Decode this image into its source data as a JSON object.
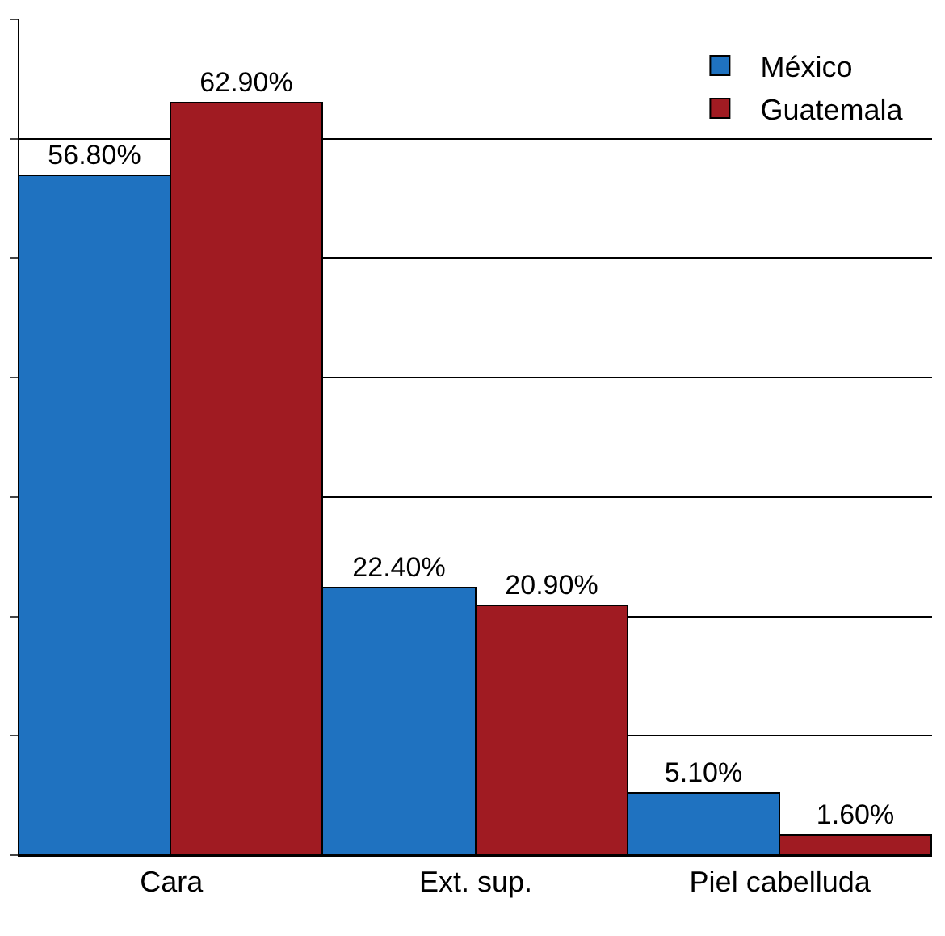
{
  "chart_data": {
    "type": "bar",
    "categories": [
      "Cara",
      "Ext. sup.",
      "Piel cabelluda"
    ],
    "series": [
      {
        "name": "México",
        "color": "#1f72c0",
        "values": [
          56.8,
          22.4,
          5.1
        ],
        "value_labels": [
          "56.80%",
          "22.40%",
          "5.10%"
        ]
      },
      {
        "name": "Guatemala",
        "color": "#a01b22",
        "values": [
          62.9,
          20.9,
          1.6
        ],
        "value_labels": [
          "62.90%",
          "20.90%",
          "1.60%"
        ]
      }
    ],
    "ylim": [
      0,
      70
    ],
    "yticks": [
      {
        "value": 0,
        "label": null
      },
      {
        "value": 10,
        "label": null
      },
      {
        "value": 20,
        "label": null
      },
      {
        "value": 30,
        "label": null
      },
      {
        "value": 40,
        "label": null
      },
      {
        "value": 50,
        "label": null
      },
      {
        "value": 60,
        "label": null
      },
      {
        "value": 70,
        "label": null
      }
    ],
    "grid": "y",
    "legend": "top right",
    "tick_labels": "x"
  }
}
